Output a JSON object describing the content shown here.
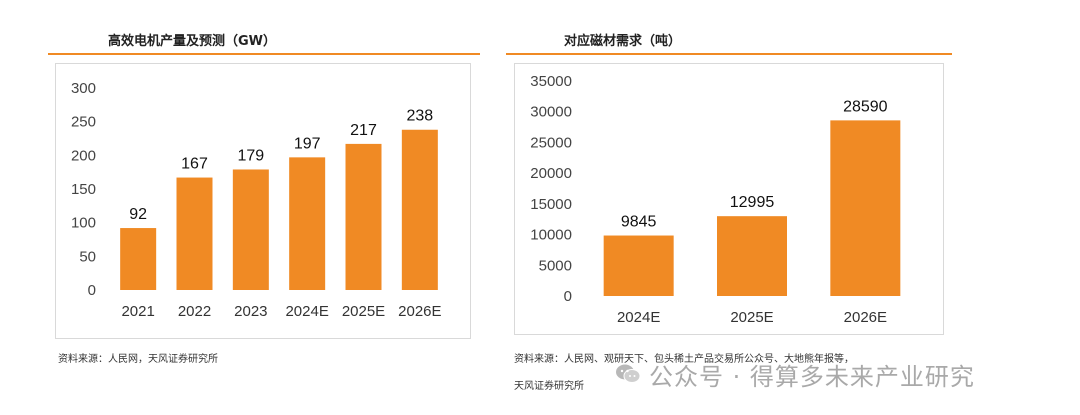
{
  "left": {
    "title": "高效电机产量及预测（GW）",
    "source": "资料来源：人民网，天风证券研究所"
  },
  "right": {
    "title": "对应磁材需求（吨）",
    "source_line1": "资料来源：人民网、观研天下、包头稀土产品交易所公众号、大地熊年报等，",
    "source_line2": "天风证券研究所"
  },
  "watermark": {
    "text": "公众号 · 得算多未来产业研究",
    "icon": "wechat-icon"
  },
  "colors": {
    "bar": "#f08a24",
    "rule": "#f08a24"
  },
  "chart_data": [
    {
      "type": "bar",
      "title": "高效电机产量及预测（GW）",
      "categories": [
        "2021",
        "2022",
        "2023",
        "2024E",
        "2025E",
        "2026E"
      ],
      "values": [
        92,
        167,
        179,
        197,
        217,
        238
      ],
      "ylim": [
        0,
        300
      ],
      "yticks": [
        0,
        50,
        100,
        150,
        200,
        250,
        300
      ],
      "xlabel": "",
      "ylabel": "",
      "grid": false
    },
    {
      "type": "bar",
      "title": "对应磁材需求（吨）",
      "categories": [
        "2024E",
        "2025E",
        "2026E"
      ],
      "values": [
        9845,
        12995,
        28590
      ],
      "ylim": [
        0,
        35000
      ],
      "yticks": [
        0,
        5000,
        10000,
        15000,
        20000,
        25000,
        30000,
        35000
      ],
      "xlabel": "",
      "ylabel": "",
      "grid": false
    }
  ]
}
